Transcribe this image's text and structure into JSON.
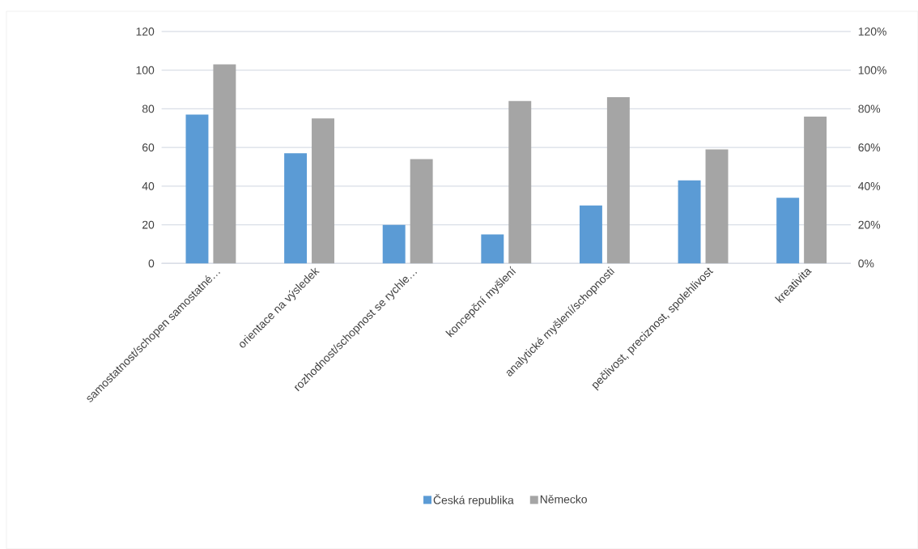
{
  "chart_data": {
    "type": "bar",
    "categories": [
      "samostatnost/schopen samostatné…",
      "orientace na výsledek",
      "rozhodnost/schopnost se rychle…",
      "koncepční myšlení",
      "analytické myšlení/schopnosti",
      "pečlivost, preciznost, spolehlivost",
      "kreativita"
    ],
    "series": [
      {
        "name": "Česká republika",
        "color": "#5b9bd5",
        "values": [
          77,
          57,
          20,
          15,
          30,
          43,
          34
        ]
      },
      {
        "name": "Německo",
        "color": "#a5a5a5",
        "values": [
          103,
          75,
          54,
          84,
          86,
          59,
          76
        ]
      }
    ],
    "ylim": [
      0,
      120
    ],
    "yticks": [
      0,
      20,
      40,
      60,
      80,
      100,
      120
    ],
    "y2lim": [
      0,
      120
    ],
    "y2ticks": [
      {
        "value": 0,
        "label": "0%"
      },
      {
        "value": 20,
        "label": "20%"
      },
      {
        "value": 40,
        "label": "40%"
      },
      {
        "value": 60,
        "label": "60%"
      },
      {
        "value": 80,
        "label": "80%"
      },
      {
        "value": 100,
        "label": "100%"
      },
      {
        "value": 120,
        "label": "120%"
      }
    ],
    "grid": "y",
    "legend": "bottom"
  }
}
